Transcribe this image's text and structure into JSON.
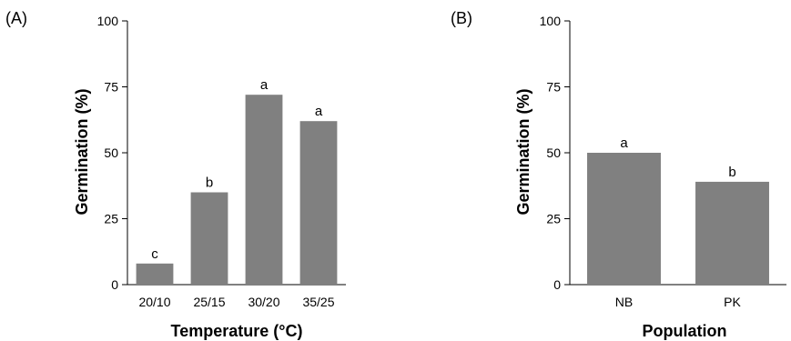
{
  "chart_data": [
    {
      "type": "bar",
      "panel_label": "(A)",
      "xlabel": "Temperature (°C)",
      "ylabel": "Germination (%)",
      "ylim": [
        0,
        100
      ],
      "yticks": [
        "0",
        "25",
        "50",
        "75",
        "100"
      ],
      "categories": [
        "20/10",
        "25/15",
        "30/20",
        "35/25"
      ],
      "values": [
        8,
        35,
        72,
        62
      ],
      "letters": [
        "c",
        "b",
        "a",
        "a"
      ],
      "bar_color": "#808080",
      "grid": false
    },
    {
      "type": "bar",
      "panel_label": "(B)",
      "xlabel": "Population",
      "ylabel": "Germination (%)",
      "ylim": [
        0,
        100
      ],
      "yticks": [
        "0",
        "25",
        "50",
        "75",
        "100"
      ],
      "categories": [
        "NB",
        "PK"
      ],
      "values": [
        50,
        39
      ],
      "letters": [
        "a",
        "b"
      ],
      "bar_color": "#808080",
      "grid": false
    }
  ]
}
